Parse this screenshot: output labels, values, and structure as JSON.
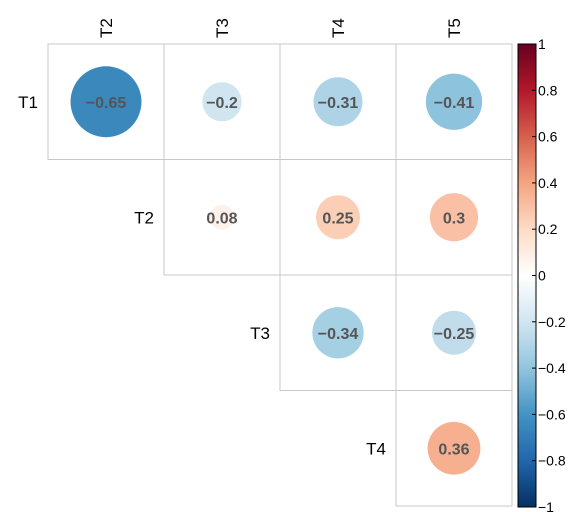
{
  "chart_data": {
    "type": "heatmap",
    "variant": "correlation-circles-upper-triangle",
    "rows": [
      "T1",
      "T2",
      "T3",
      "T4"
    ],
    "cols": [
      "T2",
      "T3",
      "T4",
      "T5"
    ],
    "cells": [
      {
        "row": "T1",
        "col": "T2",
        "value": -0.65,
        "label": "−0.65"
      },
      {
        "row": "T1",
        "col": "T3",
        "value": -0.2,
        "label": "−0.2"
      },
      {
        "row": "T1",
        "col": "T4",
        "value": -0.31,
        "label": "−0.31"
      },
      {
        "row": "T1",
        "col": "T5",
        "value": -0.41,
        "label": "−0.41"
      },
      {
        "row": "T2",
        "col": "T3",
        "value": 0.08,
        "label": "0.08"
      },
      {
        "row": "T2",
        "col": "T4",
        "value": 0.25,
        "label": "0.25"
      },
      {
        "row": "T2",
        "col": "T5",
        "value": 0.3,
        "label": "0.3"
      },
      {
        "row": "T3",
        "col": "T4",
        "value": -0.34,
        "label": "−0.34"
      },
      {
        "row": "T3",
        "col": "T5",
        "value": -0.25,
        "label": "−0.25"
      },
      {
        "row": "T4",
        "col": "T5",
        "value": 0.36,
        "label": "0.36"
      }
    ],
    "colorbar": {
      "range": [
        -1,
        1
      ],
      "ticks": [
        "1",
        "0.8",
        "0.6",
        "0.4",
        "0.2",
        "0",
        "−0.2",
        "−0.4",
        "−0.6",
        "−0.8",
        "−1"
      ],
      "tick_values": [
        1,
        0.8,
        0.6,
        0.4,
        0.2,
        0,
        -0.2,
        -0.4,
        -0.6,
        -0.8,
        -1
      ],
      "colors": [
        "#67001F",
        "#B2182B",
        "#D6604D",
        "#F4A582",
        "#FDDBC7",
        "#FFFFFF",
        "#D1E5F0",
        "#92C5DE",
        "#4393C3",
        "#2166AC",
        "#053061"
      ],
      "placement": "right"
    },
    "title": "",
    "xlabel": "",
    "ylabel": ""
  }
}
